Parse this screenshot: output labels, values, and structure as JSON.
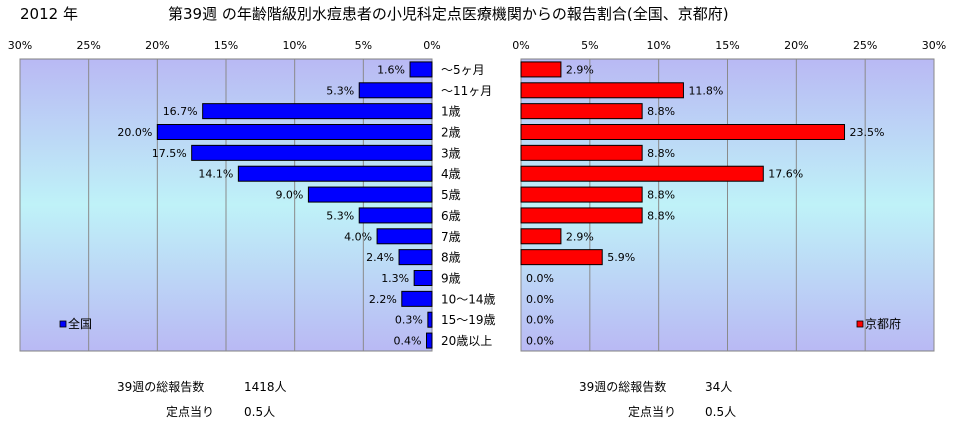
{
  "header": {
    "year": "2012 年",
    "title": "第39週 の年齢階級別水痘患者の小児科定点医療機関からの報告割合(全国、京都府)"
  },
  "summary": {
    "national": {
      "total_label": "39週の総報告数",
      "total_value": "1418人",
      "per_label": "定点当り",
      "per_value": "0.5人"
    },
    "kyoto": {
      "total_label": "39週の総報告数",
      "total_value": "34人",
      "per_label": "定点当り",
      "per_value": "0.5人"
    }
  },
  "chart_data": [
    {
      "type": "bar",
      "orientation": "horizontal",
      "direction": "right-to-left",
      "title": "",
      "xlabel": "",
      "ylabel": "",
      "categories": [
        "〜5ヶ月",
        "〜11ヶ月",
        "1歳",
        "2歳",
        "3歳",
        "4歳",
        "5歳",
        "6歳",
        "7歳",
        "8歳",
        "9歳",
        "10〜14歳",
        "15〜19歳",
        "20歳以上"
      ],
      "series": [
        {
          "name": "全国",
          "values": [
            1.6,
            5.3,
            16.7,
            20.0,
            17.5,
            14.1,
            9.0,
            5.3,
            4.0,
            2.4,
            1.3,
            2.2,
            0.3,
            0.4
          ]
        }
      ],
      "value_labels": [
        "1.6%",
        "5.3%",
        "16.7%",
        "20.0%",
        "17.5%",
        "14.1%",
        "9.0%",
        "5.3%",
        "4.0%",
        "2.4%",
        "1.3%",
        "2.2%",
        "0.3%",
        "0.4%"
      ],
      "xlim": [
        0,
        30
      ],
      "ticks": [
        "30%",
        "25%",
        "20%",
        "15%",
        "10%",
        "5%",
        "0%"
      ],
      "tick_values": [
        30,
        25,
        20,
        15,
        10,
        5,
        0
      ],
      "grid": true,
      "legend": "bottom-left",
      "color": "#0000ff"
    },
    {
      "type": "bar",
      "orientation": "horizontal",
      "direction": "left-to-right",
      "title": "",
      "xlabel": "",
      "ylabel": "",
      "categories": [
        "〜5ヶ月",
        "〜11ヶ月",
        "1歳",
        "2歳",
        "3歳",
        "4歳",
        "5歳",
        "6歳",
        "7歳",
        "8歳",
        "9歳",
        "10〜14歳",
        "15〜19歳",
        "20歳以上"
      ],
      "series": [
        {
          "name": "京都府",
          "values": [
            2.9,
            11.8,
            8.8,
            23.5,
            8.8,
            17.6,
            8.8,
            8.8,
            2.9,
            5.9,
            0.0,
            0.0,
            0.0,
            0.0
          ]
        }
      ],
      "value_labels": [
        "2.9%",
        "11.8%",
        "8.8%",
        "23.5%",
        "8.8%",
        "17.6%",
        "8.8%",
        "8.8%",
        "2.9%",
        "5.9%",
        "0.0%",
        "0.0%",
        "0.0%",
        "0.0%"
      ],
      "xlim": [
        0,
        30
      ],
      "ticks": [
        "0%",
        "5%",
        "10%",
        "15%",
        "20%",
        "25%",
        "30%"
      ],
      "tick_values": [
        0,
        5,
        10,
        15,
        20,
        25,
        30
      ],
      "grid": true,
      "legend": "bottom-right",
      "color": "#ff0000"
    }
  ]
}
